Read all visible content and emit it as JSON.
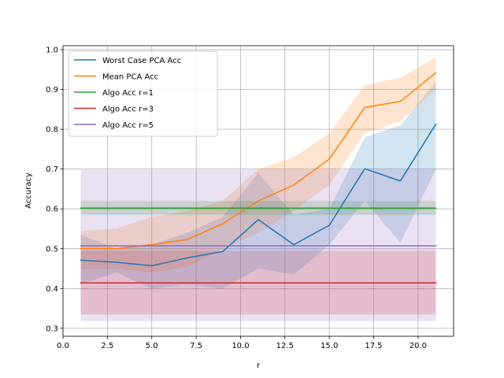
{
  "chart_data": {
    "type": "line",
    "title": "",
    "xlabel": "r",
    "ylabel": "Accuracy",
    "xlim": [
      0.0,
      22.0
    ],
    "ylim": [
      0.28,
      1.01
    ],
    "xticks": [
      0.0,
      2.5,
      5.0,
      7.5,
      10.0,
      12.5,
      15.0,
      17.5,
      20.0
    ],
    "xtick_labels": [
      "0.0",
      "2.5",
      "5.0",
      "7.5",
      "10.0",
      "12.5",
      "15.0",
      "17.5",
      "20.0"
    ],
    "yticks": [
      0.3,
      0.4,
      0.5,
      0.6,
      0.7,
      0.8,
      0.9,
      1.0
    ],
    "ytick_labels": [
      "0.3",
      "0.4",
      "0.5",
      "0.6",
      "0.7",
      "0.8",
      "0.9",
      "1.0"
    ],
    "grid": true,
    "legend_position": "top-left",
    "x": [
      1,
      3,
      5,
      7,
      9,
      11,
      13,
      15,
      17,
      19,
      21
    ],
    "series": [
      {
        "name": "Worst Case PCA Acc",
        "color": "#1f77b4",
        "values": [
          0.471,
          0.466,
          0.457,
          0.477,
          0.493,
          0.573,
          0.51,
          0.559,
          0.701,
          0.67,
          0.813
        ],
        "band_low": [
          0.41,
          0.44,
          0.4,
          0.41,
          0.4,
          0.45,
          0.435,
          0.51,
          0.62,
          0.515,
          0.7
        ],
        "band_high": [
          0.535,
          0.5,
          0.51,
          0.54,
          0.58,
          0.69,
          0.585,
          0.6,
          0.78,
          0.81,
          0.92
        ]
      },
      {
        "name": "Mean PCA Acc",
        "color": "#ff7f0e",
        "values": [
          0.5,
          0.5,
          0.51,
          0.523,
          0.563,
          0.62,
          0.66,
          0.725,
          0.855,
          0.87,
          0.942
        ],
        "band_low": [
          0.45,
          0.45,
          0.44,
          0.455,
          0.5,
          0.54,
          0.595,
          0.66,
          0.79,
          0.82,
          0.9
        ],
        "band_high": [
          0.545,
          0.55,
          0.58,
          0.595,
          0.62,
          0.7,
          0.73,
          0.79,
          0.91,
          0.93,
          0.98
        ]
      },
      {
        "name": "Algo Acc r=1",
        "color": "#2ca02c",
        "values": [
          0.602,
          0.602,
          0.602,
          0.602,
          0.602,
          0.602,
          0.602,
          0.602,
          0.602,
          0.602,
          0.602
        ],
        "band_low": [
          0.585,
          0.585,
          0.585,
          0.585,
          0.585,
          0.585,
          0.585,
          0.585,
          0.585,
          0.585,
          0.585
        ],
        "band_high": [
          0.62,
          0.62,
          0.62,
          0.62,
          0.62,
          0.62,
          0.62,
          0.62,
          0.62,
          0.62,
          0.62
        ]
      },
      {
        "name": "Algo Acc r=3",
        "color": "#d62728",
        "values": [
          0.414,
          0.414,
          0.414,
          0.414,
          0.414,
          0.414,
          0.414,
          0.414,
          0.414,
          0.414,
          0.414
        ],
        "band_low": [
          0.335,
          0.335,
          0.335,
          0.335,
          0.335,
          0.335,
          0.335,
          0.335,
          0.335,
          0.335,
          0.335
        ],
        "band_high": [
          0.495,
          0.495,
          0.495,
          0.495,
          0.495,
          0.495,
          0.495,
          0.495,
          0.495,
          0.495,
          0.495
        ]
      },
      {
        "name": "Algo Acc r=5",
        "color": "#9467bd",
        "values": [
          0.507,
          0.507,
          0.507,
          0.507,
          0.507,
          0.507,
          0.507,
          0.507,
          0.507,
          0.507,
          0.507
        ],
        "band_low": [
          0.318,
          0.318,
          0.318,
          0.318,
          0.318,
          0.318,
          0.318,
          0.318,
          0.318,
          0.318,
          0.318
        ],
        "band_high": [
          0.698,
          0.698,
          0.698,
          0.698,
          0.698,
          0.698,
          0.698,
          0.698,
          0.698,
          0.698,
          0.698
        ]
      }
    ]
  }
}
